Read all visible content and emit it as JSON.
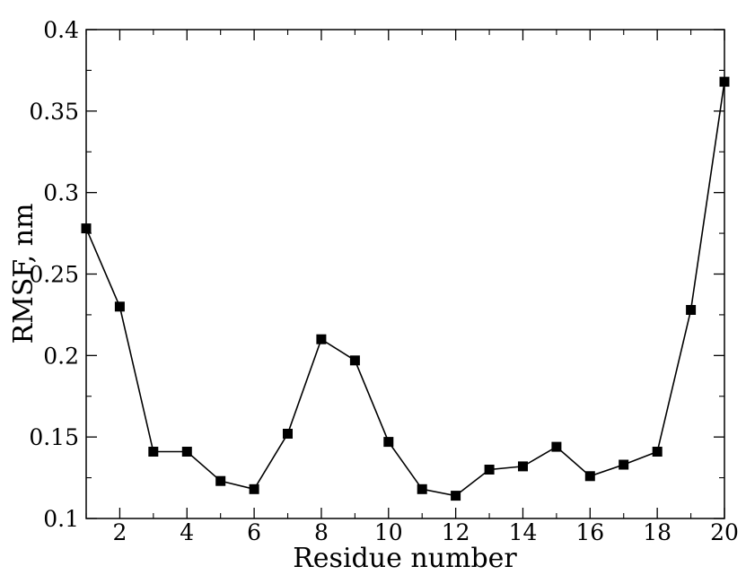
{
  "chart_data": {
    "type": "line",
    "title": "",
    "xlabel": "Residue number",
    "ylabel": "RMSF, nm",
    "xlim": [
      1,
      20
    ],
    "ylim": [
      0.1,
      0.4
    ],
    "x_ticks": [
      2,
      4,
      6,
      8,
      10,
      12,
      14,
      16,
      18,
      20
    ],
    "x_tick_labels": [
      "2",
      "4",
      "6",
      "8",
      "10",
      "12",
      "14",
      "16",
      "18",
      "20"
    ],
    "y_ticks": [
      0.1,
      0.15,
      0.2,
      0.25,
      0.3,
      0.35,
      0.4
    ],
    "y_tick_labels": [
      "0.1",
      "0.15",
      "0.2",
      "0.25",
      "0.3",
      "0.35",
      "0.4"
    ],
    "grid": false,
    "marker": "square",
    "line_color": "#000000",
    "series": [
      {
        "x": [
          1,
          2,
          3,
          4,
          5,
          6,
          7,
          8,
          9,
          10,
          11,
          12,
          13,
          14,
          15,
          16,
          17,
          18,
          19,
          20
        ],
        "values": [
          0.278,
          0.23,
          0.141,
          0.141,
          0.123,
          0.118,
          0.152,
          0.21,
          0.197,
          0.147,
          0.118,
          0.114,
          0.13,
          0.132,
          0.144,
          0.126,
          0.133,
          0.141,
          0.228,
          0.368
        ]
      }
    ]
  }
}
